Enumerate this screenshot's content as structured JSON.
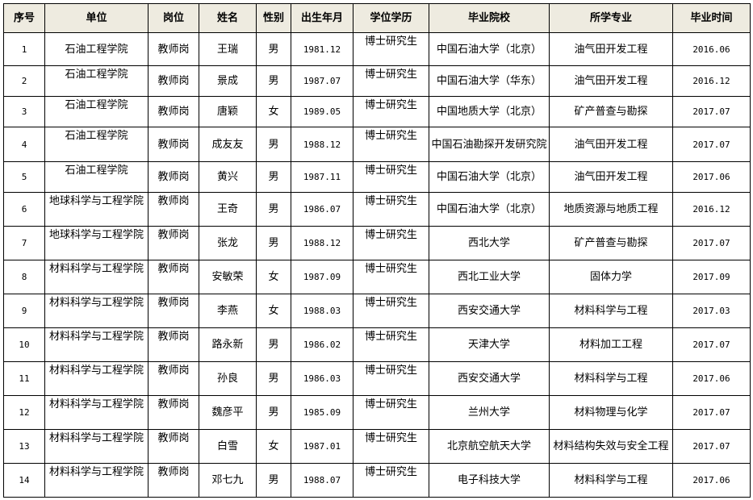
{
  "headers": [
    "序号",
    "单位",
    "岗位",
    "姓名",
    "性别",
    "出生年月",
    "学位学历",
    "毕业院校",
    "所学专业",
    "毕业时间"
  ],
  "rows": [
    [
      "1",
      "石油工程学院",
      "教师岗",
      "王瑞",
      "男",
      "1981.12",
      "博士研究生",
      "中国石油大学（北京）",
      "油气田开发工程",
      "2016.06"
    ],
    [
      "2",
      "石油工程学院",
      "教师岗",
      "景成",
      "男",
      "1987.07",
      "博士研究生",
      "中国石油大学（华东）",
      "油气田开发工程",
      "2016.12"
    ],
    [
      "3",
      "石油工程学院",
      "教师岗",
      "唐颖",
      "女",
      "1989.05",
      "博士研究生",
      "中国地质大学（北京）",
      "矿产普查与勘探",
      "2017.07"
    ],
    [
      "4",
      "石油工程学院",
      "教师岗",
      "成友友",
      "男",
      "1988.12",
      "博士研究生",
      "中国石油勘探开发研究院",
      "油气田开发工程",
      "2017.07"
    ],
    [
      "5",
      "石油工程学院",
      "教师岗",
      "黄兴",
      "男",
      "1987.11",
      "博士研究生",
      "中国石油大学（北京）",
      "油气田开发工程",
      "2017.06"
    ],
    [
      "6",
      "地球科学与工程学院",
      "教师岗",
      "王奇",
      "男",
      "1986.07",
      "博士研究生",
      "中国石油大学（北京）",
      "地质资源与地质工程",
      "2016.12"
    ],
    [
      "7",
      "地球科学与工程学院",
      "教师岗",
      "张龙",
      "男",
      "1988.12",
      "博士研究生",
      "西北大学",
      "矿产普查与勘探",
      "2017.07"
    ],
    [
      "8",
      "材料科学与工程学院",
      "教师岗",
      "安敏荣",
      "女",
      "1987.09",
      "博士研究生",
      "西北工业大学",
      "固体力学",
      "2017.09"
    ],
    [
      "9",
      "材料科学与工程学院",
      "教师岗",
      "李燕",
      "女",
      "1988.03",
      "博士研究生",
      "西安交通大学",
      "材料科学与工程",
      "2017.03"
    ],
    [
      "10",
      "材料科学与工程学院",
      "教师岗",
      "路永新",
      "男",
      "1986.02",
      "博士研究生",
      "天津大学",
      "材料加工工程",
      "2017.07"
    ],
    [
      "11",
      "材料科学与工程学院",
      "教师岗",
      "孙良",
      "男",
      "1986.03",
      "博士研究生",
      "西安交通大学",
      "材料科学与工程",
      "2017.06"
    ],
    [
      "12",
      "材料科学与工程学院",
      "教师岗",
      "魏彦平",
      "男",
      "1985.09",
      "博士研究生",
      "兰州大学",
      "材料物理与化学",
      "2017.07"
    ],
    [
      "13",
      "材料科学与工程学院",
      "教师岗",
      "白雪",
      "女",
      "1987.01",
      "博士研究生",
      "北京航空航天大学",
      "材料结构失效与安全工程",
      "2017.07"
    ],
    [
      "14",
      "材料科学与工程学院",
      "教师岗",
      "邓七九",
      "男",
      "1988.07",
      "博士研究生",
      "电子科技大学",
      "材料科学与工程",
      "2017.06"
    ]
  ],
  "colors": {
    "header_bg": "#eeebe0",
    "border": "#000000"
  }
}
